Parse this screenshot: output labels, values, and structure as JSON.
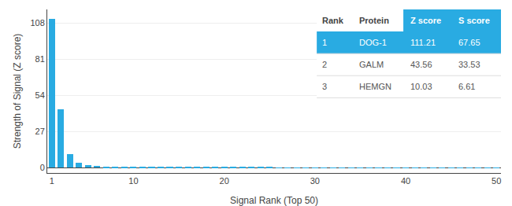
{
  "chart_data": {
    "type": "bar",
    "xlabel": "Signal Rank (Top 50)",
    "ylabel": "Strength of Signal (Z score)",
    "x": [
      1,
      2,
      3,
      4,
      5,
      6,
      7,
      8,
      9,
      10,
      11,
      12,
      13,
      14,
      15,
      16,
      17,
      18,
      19,
      20,
      21,
      22,
      23,
      24,
      25,
      26,
      27,
      28,
      29,
      30,
      31,
      32,
      33,
      34,
      35,
      36,
      37,
      38,
      39,
      40,
      41,
      42,
      43,
      44,
      45,
      46,
      47,
      48,
      49,
      50
    ],
    "values": [
      111.21,
      43.56,
      10.03,
      3.5,
      1.8,
      1.2,
      0.9,
      0.7,
      0.6,
      0.5,
      0.4,
      0.4,
      0.35,
      0.3,
      0.28,
      0.25,
      0.22,
      0.2,
      0.18,
      0.17,
      0.15,
      0.14,
      0.13,
      0.12,
      0.11,
      0.1,
      0.1,
      0.09,
      0.09,
      0.08,
      0.08,
      0.07,
      0.07,
      0.07,
      0.06,
      0.06,
      0.06,
      0.05,
      0.05,
      0.05,
      0.05,
      0.04,
      0.04,
      0.04,
      0.04,
      0.03,
      0.03,
      0.03,
      0.03,
      0.03
    ],
    "color": "#29abe2",
    "xlim": [
      0.5,
      50.5
    ],
    "xticks": [
      1,
      10,
      20,
      30,
      40,
      50
    ],
    "ylim": [
      -4,
      118
    ],
    "yticks": [
      0,
      27,
      54,
      81,
      108
    ],
    "grid": true,
    "table": {
      "headers": [
        "Rank",
        "Protein",
        "Z score",
        "S score"
      ],
      "rows": [
        [
          "1",
          "DOG-1",
          "111.21",
          "67.65"
        ],
        [
          "2",
          "GALM",
          "43.56",
          "33.53"
        ],
        [
          "3",
          "HEMGN",
          "10.03",
          "6.61"
        ]
      ]
    }
  }
}
